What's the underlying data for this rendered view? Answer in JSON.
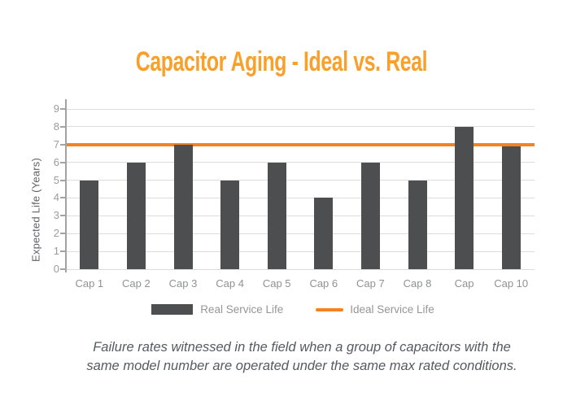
{
  "title": {
    "text": "Capacitor Aging - Ideal vs. Real",
    "color": "#F9A02B"
  },
  "chart_data": {
    "type": "bar",
    "title": "Capacitor Aging - Ideal vs. Real",
    "categories": [
      "Cap 1",
      "Cap 2",
      "Cap 3",
      "Cap 4",
      "Cap 5",
      "Cap 6",
      "Cap 7",
      "Cap 8",
      "Cap",
      "Cap 10"
    ],
    "series": [
      {
        "name": "Real Service Life",
        "type": "bar",
        "color": "#4C4E50",
        "values": [
          5,
          6,
          7,
          5,
          6,
          4,
          6,
          5,
          8,
          6.9
        ]
      },
      {
        "name": "Ideal Service Life",
        "type": "line",
        "color": "#F58220",
        "values": [
          7,
          7,
          7,
          7,
          7,
          7,
          7,
          7,
          7,
          7
        ]
      }
    ],
    "xlabel": "",
    "ylabel": "Expected Life (Years)",
    "yticks": [
      0,
      1,
      2,
      3,
      4,
      5,
      6,
      7,
      8,
      9
    ],
    "ylim": [
      0,
      9
    ],
    "grid": true,
    "gridline_color": "#DCDCDC",
    "axis_color": "#A3A3A3",
    "tick_label_color": "#9B9B9B",
    "legend_position": "bottom"
  },
  "legend": {
    "items": [
      {
        "label": "Real Service Life",
        "swatch": "bar",
        "color": "#4C4E50"
      },
      {
        "label": "Ideal Service Life",
        "swatch": "line",
        "color": "#F58220"
      }
    ]
  },
  "caption": {
    "line1": "Failure rates witnessed in the field when a group of capacitors with the",
    "line2": "same model number are operated under the same max rated conditions."
  }
}
